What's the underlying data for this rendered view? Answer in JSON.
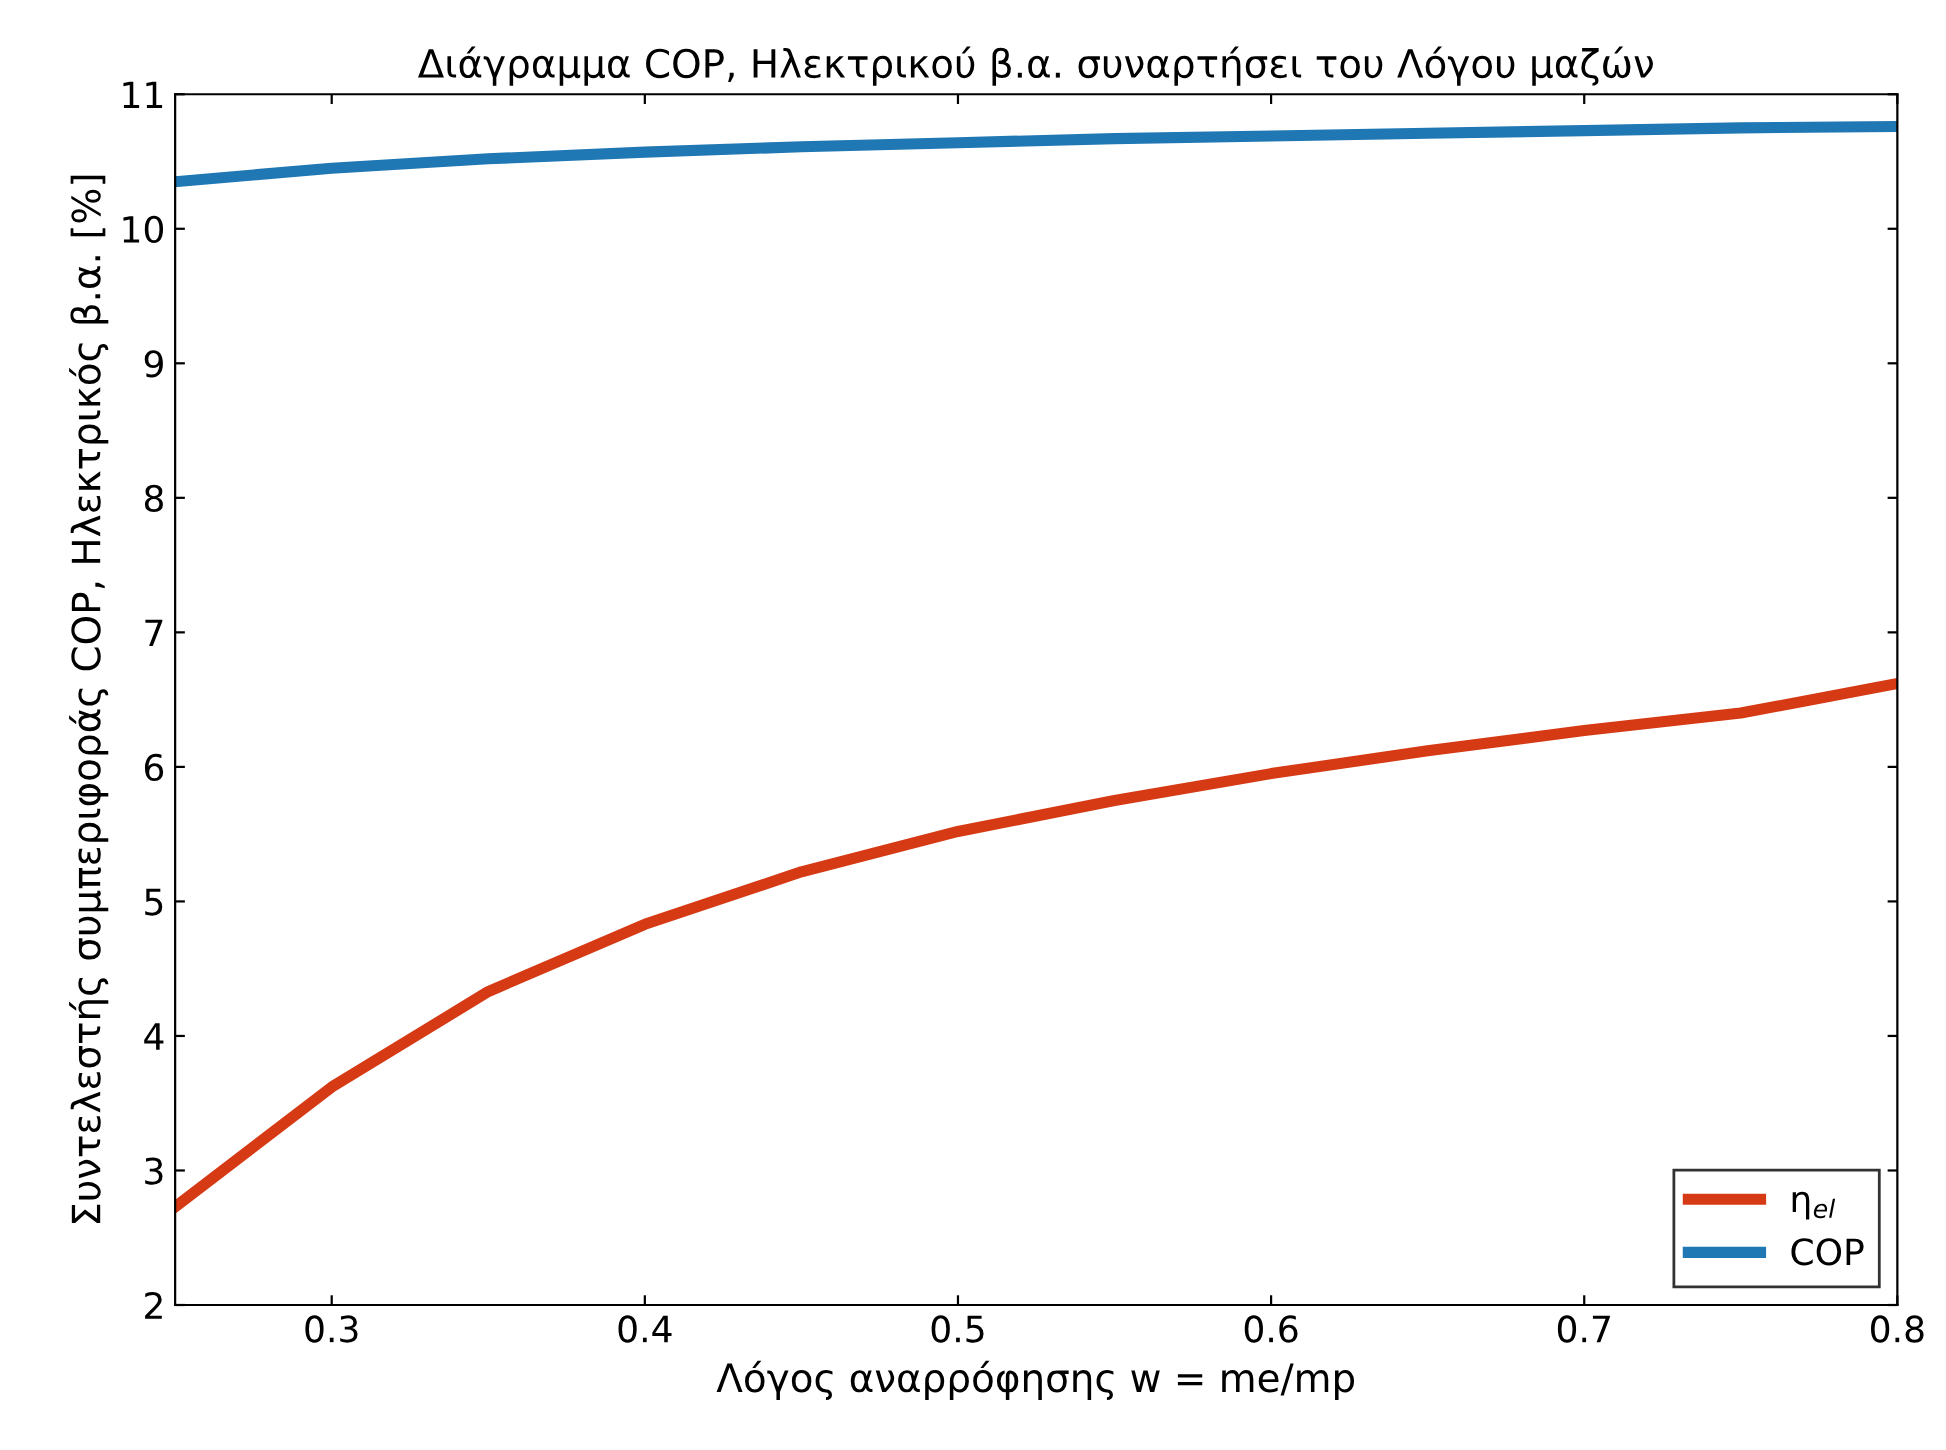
{
  "chart_data": {
    "type": "line",
    "title": "Διάγραμμα COP, Ηλεκτρικού β.α. συναρτήσει του Λόγου μαζών",
    "xlabel": "Λόγος αναρρόφησης w = me/mp",
    "ylabel": "Συντελεστής συμπεριφοράς COP, Ηλεκτρικός β.α. [%]",
    "x": [
      0.25,
      0.3,
      0.35,
      0.4,
      0.45,
      0.5,
      0.55,
      0.6,
      0.65,
      0.7,
      0.75,
      0.8
    ],
    "series": [
      {
        "name": "η$_{el}$",
        "color": "#d63a15",
        "values": [
          2.73,
          3.62,
          4.33,
          4.83,
          5.22,
          5.52,
          5.75,
          5.95,
          6.12,
          6.27,
          6.4,
          6.62
        ]
      },
      {
        "name": "COP",
        "color": "#1f77b4",
        "values": [
          10.35,
          10.45,
          10.52,
          10.57,
          10.61,
          10.64,
          10.67,
          10.69,
          10.71,
          10.73,
          10.75,
          10.76
        ]
      }
    ],
    "xlim": [
      0.25,
      0.8
    ],
    "xticks": [
      0.3,
      0.4,
      0.5,
      0.6,
      0.7,
      0.8
    ],
    "ylim": [
      2,
      11
    ],
    "yticks": [
      2,
      3,
      4,
      5,
      6,
      7,
      8,
      9,
      10,
      11
    ],
    "grid": false,
    "legend": "bottom right",
    "line_style": "solid",
    "marker": "none"
  }
}
